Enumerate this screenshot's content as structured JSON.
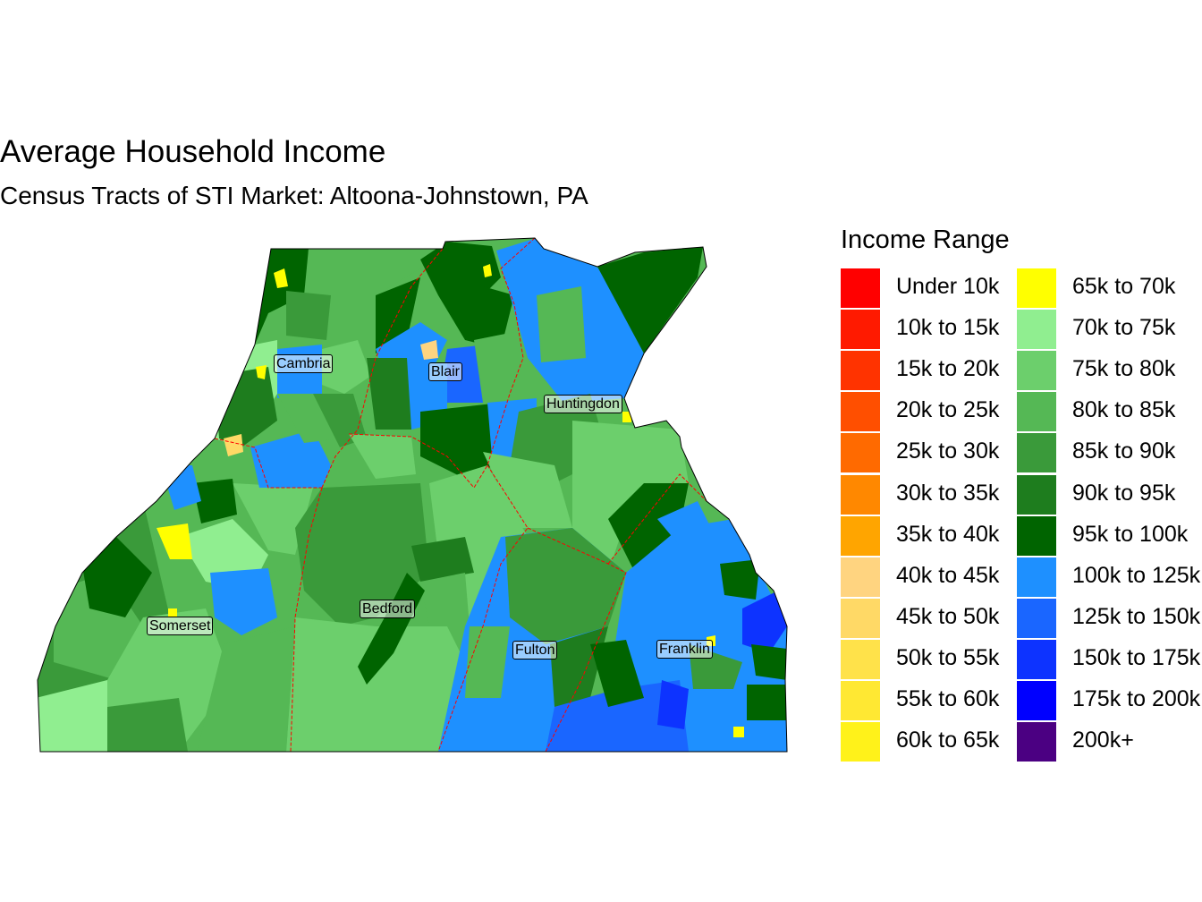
{
  "title": "Average Household Income",
  "subtitle": "Census Tracts of STI Market: Altoona-Johnstown, PA",
  "legend": {
    "title": "Income Range",
    "items": [
      {
        "label": "Under 10k",
        "color": "#ff0000"
      },
      {
        "label": "10k to 15k",
        "color": "#ff1a00"
      },
      {
        "label": "15k to 20k",
        "color": "#ff3300"
      },
      {
        "label": "20k to 25k",
        "color": "#ff4f00"
      },
      {
        "label": "25k to 30k",
        "color": "#ff6a00"
      },
      {
        "label": "30k to 35k",
        "color": "#ff8800"
      },
      {
        "label": "35k to 40k",
        "color": "#ffa500"
      },
      {
        "label": "40k to 45k",
        "color": "#ffd480"
      },
      {
        "label": "45k to 50k",
        "color": "#ffd966"
      },
      {
        "label": "50k to 55k",
        "color": "#ffe24a"
      },
      {
        "label": "55k to 60k",
        "color": "#ffe833"
      },
      {
        "label": "60k to 65k",
        "color": "#fff21a"
      },
      {
        "label": "65k to 70k",
        "color": "#ffff00"
      },
      {
        "label": "70k to 75k",
        "color": "#90ee90"
      },
      {
        "label": "75k to 80k",
        "color": "#6ccf6c"
      },
      {
        "label": "80k to 85k",
        "color": "#55b855"
      },
      {
        "label": "85k to 90k",
        "color": "#3a9a3a"
      },
      {
        "label": "90k to 95k",
        "color": "#1e7d1e"
      },
      {
        "label": "95k to 100k",
        "color": "#006400"
      },
      {
        "label": "100k to 125k",
        "color": "#1e90ff"
      },
      {
        "label": "125k to 150k",
        "color": "#1a66ff"
      },
      {
        "label": "150k to 175k",
        "color": "#0d33ff"
      },
      {
        "label": "175k to 200k",
        "color": "#0000ff"
      },
      {
        "label": "200k+",
        "color": "#4b0082"
      }
    ]
  },
  "counties": [
    {
      "name": "Cambria"
    },
    {
      "name": "Blair"
    },
    {
      "name": "Huntingdon"
    },
    {
      "name": "Somerset"
    },
    {
      "name": "Bedford"
    },
    {
      "name": "Fulton"
    },
    {
      "name": "Franklin"
    }
  ],
  "colors": {
    "county_border": "#ff0000",
    "outline": "#000000"
  }
}
